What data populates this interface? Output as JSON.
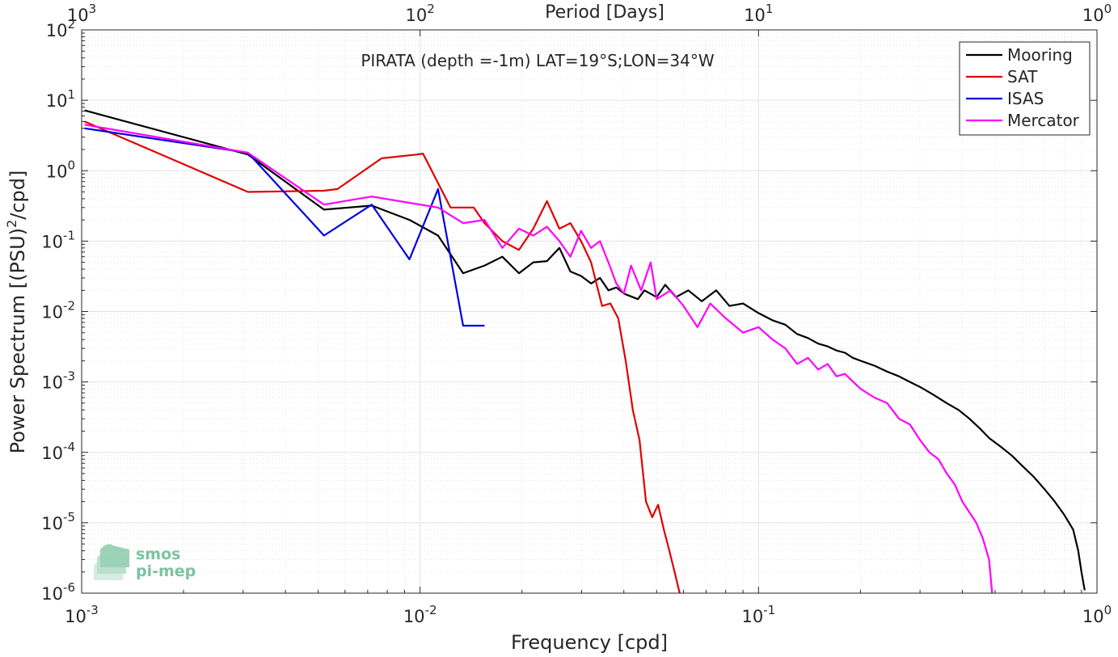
{
  "chart_data": {
    "type": "line",
    "title": "PIRATA (depth =-1m) LAT=19°S;LON=34°W",
    "xlabel": "Frequency [cpd]",
    "ylabel": "Power Spectrum [(PSU)",
    "ylabel_sup": "2",
    "ylabel_end": "/cpd]",
    "top_xlabel": "Period [Days]",
    "xscale": "log",
    "yscale": "log",
    "xlim": [
      0.001,
      1
    ],
    "ylim": [
      1e-06,
      100
    ],
    "grid": true,
    "legend_position": "top-right",
    "x_ticks": [
      {
        "value": 0.001,
        "base": "10",
        "exp": "-3"
      },
      {
        "value": 0.01,
        "base": "10",
        "exp": "-2"
      },
      {
        "value": 0.1,
        "base": "10",
        "exp": "-1"
      },
      {
        "value": 1,
        "base": "10",
        "exp": "0"
      }
    ],
    "y_ticks": [
      {
        "value": 1e-06,
        "base": "10",
        "exp": "-6"
      },
      {
        "value": 1e-05,
        "base": "10",
        "exp": "-5"
      },
      {
        "value": 0.0001,
        "base": "10",
        "exp": "-4"
      },
      {
        "value": 0.001,
        "base": "10",
        "exp": "-3"
      },
      {
        "value": 0.01,
        "base": "10",
        "exp": "-2"
      },
      {
        "value": 0.1,
        "base": "10",
        "exp": "-1"
      },
      {
        "value": 1,
        "base": "10",
        "exp": "0"
      },
      {
        "value": 10,
        "base": "10",
        "exp": "1"
      },
      {
        "value": 100,
        "base": "10",
        "exp": "2"
      }
    ],
    "top_ticks": [
      {
        "value": 0.001,
        "base": "10",
        "exp": "3"
      },
      {
        "value": 0.01,
        "base": "10",
        "exp": "2"
      },
      {
        "value": 0.1,
        "base": "10",
        "exp": "1"
      },
      {
        "value": 1,
        "base": "10",
        "exp": "0"
      }
    ],
    "series": [
      {
        "name": "Mooring",
        "color": "#000000",
        "points": [
          [
            0.00102,
            7.2
          ],
          [
            0.0031,
            1.7
          ],
          [
            0.0052,
            0.28
          ],
          [
            0.0072,
            0.32
          ],
          [
            0.0093,
            0.2
          ],
          [
            0.0113,
            0.12
          ],
          [
            0.0134,
            0.035
          ],
          [
            0.0155,
            0.045
          ],
          [
            0.0175,
            0.06
          ],
          [
            0.0196,
            0.035
          ],
          [
            0.0216,
            0.05
          ],
          [
            0.0237,
            0.052
          ],
          [
            0.0258,
            0.08
          ],
          [
            0.0278,
            0.037
          ],
          [
            0.0299,
            0.032
          ],
          [
            0.032,
            0.025
          ],
          [
            0.034,
            0.03
          ],
          [
            0.036,
            0.02
          ],
          [
            0.038,
            0.022
          ],
          [
            0.04,
            0.018
          ],
          [
            0.044,
            0.015
          ],
          [
            0.046,
            0.02
          ],
          [
            0.05,
            0.016
          ],
          [
            0.053,
            0.024
          ],
          [
            0.057,
            0.016
          ],
          [
            0.062,
            0.02
          ],
          [
            0.068,
            0.014
          ],
          [
            0.075,
            0.02
          ],
          [
            0.082,
            0.012
          ],
          [
            0.09,
            0.013
          ],
          [
            0.1,
            0.0095
          ],
          [
            0.11,
            0.0075
          ],
          [
            0.12,
            0.0065
          ],
          [
            0.13,
            0.0048
          ],
          [
            0.14,
            0.0042
          ],
          [
            0.15,
            0.0035
          ],
          [
            0.16,
            0.0032
          ],
          [
            0.17,
            0.0028
          ],
          [
            0.18,
            0.0026
          ],
          [
            0.19,
            0.0022
          ],
          [
            0.2,
            0.002
          ],
          [
            0.22,
            0.0017
          ],
          [
            0.24,
            0.0014
          ],
          [
            0.26,
            0.0012
          ],
          [
            0.28,
            0.001
          ],
          [
            0.3,
            0.00085
          ],
          [
            0.33,
            0.00065
          ],
          [
            0.36,
            0.0005
          ],
          [
            0.39,
            0.0004
          ],
          [
            0.42,
            0.0003
          ],
          [
            0.45,
            0.00022
          ],
          [
            0.48,
            0.00016
          ],
          [
            0.52,
            0.00012
          ],
          [
            0.56,
            9e-05
          ],
          [
            0.6,
            6.5e-05
          ],
          [
            0.65,
            4.5e-05
          ],
          [
            0.7,
            3e-05
          ],
          [
            0.75,
            2e-05
          ],
          [
            0.8,
            1.3e-05
          ],
          [
            0.85,
            8e-06
          ],
          [
            0.88,
            4e-06
          ],
          [
            0.9,
            2e-06
          ],
          [
            0.92,
            1.1e-06
          ]
        ]
      },
      {
        "name": "SAT",
        "color": "#e00000",
        "points": [
          [
            0.00102,
            5.0
          ],
          [
            0.0031,
            0.5
          ],
          [
            0.0052,
            0.52
          ],
          [
            0.0057,
            0.55
          ],
          [
            0.0077,
            1.5
          ],
          [
            0.0098,
            1.7
          ],
          [
            0.0102,
            1.75
          ],
          [
            0.0123,
            0.3
          ],
          [
            0.0144,
            0.3
          ],
          [
            0.0155,
            0.18
          ],
          [
            0.0175,
            0.1
          ],
          [
            0.0196,
            0.075
          ],
          [
            0.0216,
            0.15
          ],
          [
            0.0237,
            0.37
          ],
          [
            0.0258,
            0.15
          ],
          [
            0.0278,
            0.18
          ],
          [
            0.0299,
            0.1
          ],
          [
            0.032,
            0.05
          ],
          [
            0.0345,
            0.012
          ],
          [
            0.0365,
            0.013
          ],
          [
            0.0385,
            0.008
          ],
          [
            0.0405,
            0.002
          ],
          [
            0.0425,
            0.0004
          ],
          [
            0.0445,
            0.00015
          ],
          [
            0.0465,
            2e-05
          ],
          [
            0.0485,
            1.2e-05
          ],
          [
            0.0505,
            1.8e-05
          ],
          [
            0.0525,
            8e-06
          ],
          [
            0.0545,
            4e-06
          ],
          [
            0.0565,
            2e-06
          ],
          [
            0.0585,
            1e-06
          ]
        ]
      },
      {
        "name": "ISAS",
        "color": "#0000e0",
        "points": [
          [
            0.00102,
            4.0
          ],
          [
            0.0031,
            1.8
          ],
          [
            0.0052,
            0.12
          ],
          [
            0.0072,
            0.33
          ],
          [
            0.0093,
            0.055
          ],
          [
            0.0113,
            0.55
          ],
          [
            0.0134,
            0.0063
          ],
          [
            0.0155,
            0.0063
          ]
        ]
      },
      {
        "name": "Mercator",
        "color": "#ff00ff",
        "points": [
          [
            0.00102,
            4.5
          ],
          [
            0.0031,
            1.8
          ],
          [
            0.0052,
            0.33
          ],
          [
            0.0072,
            0.43
          ],
          [
            0.0093,
            0.35
          ],
          [
            0.0113,
            0.3
          ],
          [
            0.0134,
            0.18
          ],
          [
            0.0155,
            0.2
          ],
          [
            0.0175,
            0.08
          ],
          [
            0.0196,
            0.15
          ],
          [
            0.0216,
            0.12
          ],
          [
            0.0237,
            0.16
          ],
          [
            0.0258,
            0.1
          ],
          [
            0.0278,
            0.06
          ],
          [
            0.0299,
            0.14
          ],
          [
            0.032,
            0.08
          ],
          [
            0.034,
            0.1
          ],
          [
            0.036,
            0.05
          ],
          [
            0.038,
            0.025
          ],
          [
            0.04,
            0.018
          ],
          [
            0.042,
            0.045
          ],
          [
            0.045,
            0.02
          ],
          [
            0.048,
            0.05
          ],
          [
            0.05,
            0.015
          ],
          [
            0.055,
            0.02
          ],
          [
            0.06,
            0.012
          ],
          [
            0.066,
            0.006
          ],
          [
            0.072,
            0.013
          ],
          [
            0.08,
            0.008
          ],
          [
            0.09,
            0.005
          ],
          [
            0.1,
            0.006
          ],
          [
            0.11,
            0.004
          ],
          [
            0.12,
            0.003
          ],
          [
            0.13,
            0.0018
          ],
          [
            0.14,
            0.0022
          ],
          [
            0.15,
            0.0015
          ],
          [
            0.16,
            0.0018
          ],
          [
            0.17,
            0.0012
          ],
          [
            0.18,
            0.0013
          ],
          [
            0.2,
            0.0008
          ],
          [
            0.22,
            0.0006
          ],
          [
            0.24,
            0.0005
          ],
          [
            0.26,
            0.0003
          ],
          [
            0.28,
            0.00025
          ],
          [
            0.3,
            0.00015
          ],
          [
            0.32,
            0.0001
          ],
          [
            0.34,
            8e-05
          ],
          [
            0.36,
            5e-05
          ],
          [
            0.38,
            3.5e-05
          ],
          [
            0.4,
            2e-05
          ],
          [
            0.42,
            1.4e-05
          ],
          [
            0.44,
            1e-05
          ],
          [
            0.46,
            6e-06
          ],
          [
            0.48,
            3e-06
          ],
          [
            0.49,
            1e-06
          ]
        ]
      }
    ]
  },
  "logo": {
    "line1": "smos",
    "line2": "pi-mep"
  }
}
